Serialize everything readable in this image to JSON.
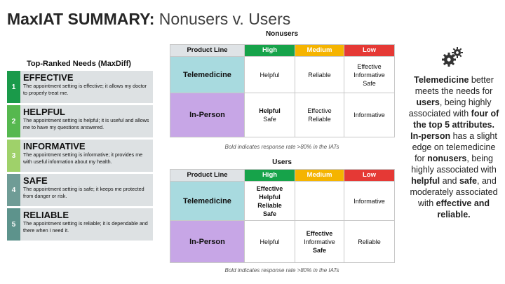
{
  "title": {
    "bold": "MaxIAT SUMMARY:",
    "light": "Nonusers v. Users"
  },
  "needs": {
    "heading": "Top-Ranked Needs (MaxDiff)",
    "items": [
      {
        "num": "1",
        "name": "EFFECTIVE",
        "desc": "The appointment setting is effective; it allows my doctor to properly treat me.",
        "color": "#1a9a4a"
      },
      {
        "num": "2",
        "name": "HELPFUL",
        "desc": "The appointment setting is helpful; it is useful and allows me to have my questions answered.",
        "color": "#56b84f"
      },
      {
        "num": "3",
        "name": "INFORMATIVE",
        "desc": "The appointment setting is informative; it provides me with useful information about my health.",
        "color": "#9fd16a"
      },
      {
        "num": "4",
        "name": "SAFE",
        "desc": "The appointment setting is safe; it keeps me protected from danger or risk.",
        "color": "#6f9c96"
      },
      {
        "num": "5",
        "name": "RELIABLE",
        "desc": "The appointment setting is reliable; it is dependable and there when I need it.",
        "color": "#5d938c"
      }
    ]
  },
  "headers": {
    "product_line": "Product Line",
    "high": "High",
    "medium": "Medium",
    "low": "Low"
  },
  "nonusers": {
    "title": "Nonusers",
    "note": "Bold indicates response rate >80% in the IATs",
    "tele": {
      "label": "Telemedicine",
      "high": "Helpful",
      "medium": "Reliable",
      "low1": "Effective",
      "low2": "Informative",
      "low3": "Safe"
    },
    "inp": {
      "label": "In-Person",
      "high1": "Helpful",
      "high2": "Safe",
      "med1": "Effective",
      "med2": "Reliable",
      "low": "Informative"
    }
  },
  "users": {
    "title": "Users",
    "note": "Bold indicates response rate >80% in the IATs",
    "tele": {
      "label": "Telemedicine",
      "h1": "Effective",
      "h2": "Helpful",
      "h3": "Reliable",
      "h4": "Safe",
      "low": "Informative"
    },
    "inp": {
      "label": "In-Person",
      "high": "Helpful",
      "m1": "Effective",
      "m2": "Informative",
      "m3": "Safe",
      "low": "Reliable"
    }
  },
  "summary": {
    "p1": "Telemedicine",
    "p2": " better meets the needs for ",
    "p3": "users",
    "p4": ", being highly associated with ",
    "p5": "four of the top 5 attributes. In-person",
    "p6": " has a slight edge on telemedicine for ",
    "p7": "nonusers",
    "p8": ", being highly associated with ",
    "p9": "helpful",
    "p10": " and ",
    "p11": "safe",
    "p12": ", and moderately associated with ",
    "p13": "effective and reliable."
  },
  "icons": {
    "gears": "gears-icon"
  }
}
